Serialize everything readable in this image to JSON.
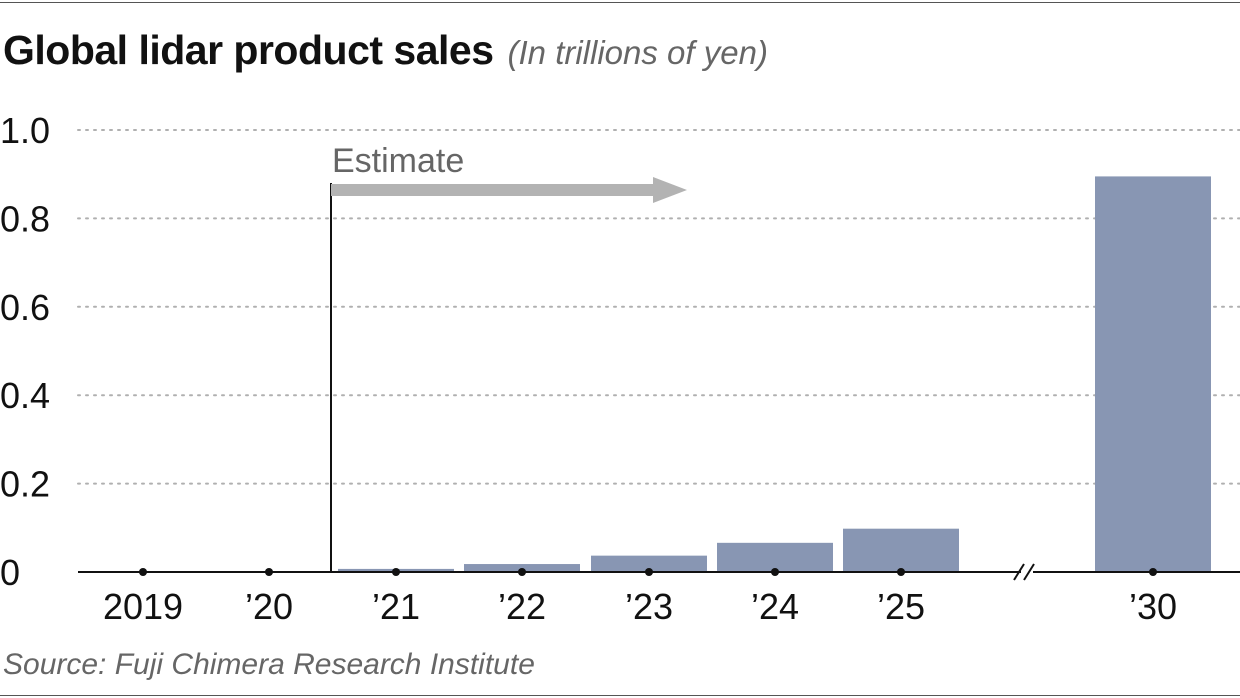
{
  "header": {
    "title": "Global lidar product sales",
    "subtitle": "(In trillions of yen)"
  },
  "footer": {
    "source": "Source: Fuji Chimera Research Institute"
  },
  "colors": {
    "bar": "#8896b3",
    "grid": "#b0b0b0",
    "arrow": "#b3b3b3",
    "axis": "#111111"
  },
  "chart_data": {
    "type": "bar",
    "categories": [
      "2019",
      "’20",
      "’21",
      "’22",
      "’23",
      "’24",
      "’25",
      "’30"
    ],
    "values": [
      0,
      0,
      0.007,
      0.018,
      0.037,
      0.066,
      0.098,
      0.895
    ],
    "estimate_start_category": "’21",
    "axis_break_between": [
      "’25",
      "’30"
    ],
    "annotation": "Estimate",
    "ylim": [
      0,
      1.0
    ],
    "yticks": [
      0,
      0.2,
      0.4,
      0.6,
      0.8,
      1.0
    ],
    "ytick_labels": [
      "0",
      "0.2",
      "0.4",
      "0.6",
      "0.8",
      "1.0"
    ],
    "grid": true,
    "title": "Global lidar product sales",
    "ylabel": "(In trillions of yen)",
    "xlabel": ""
  }
}
